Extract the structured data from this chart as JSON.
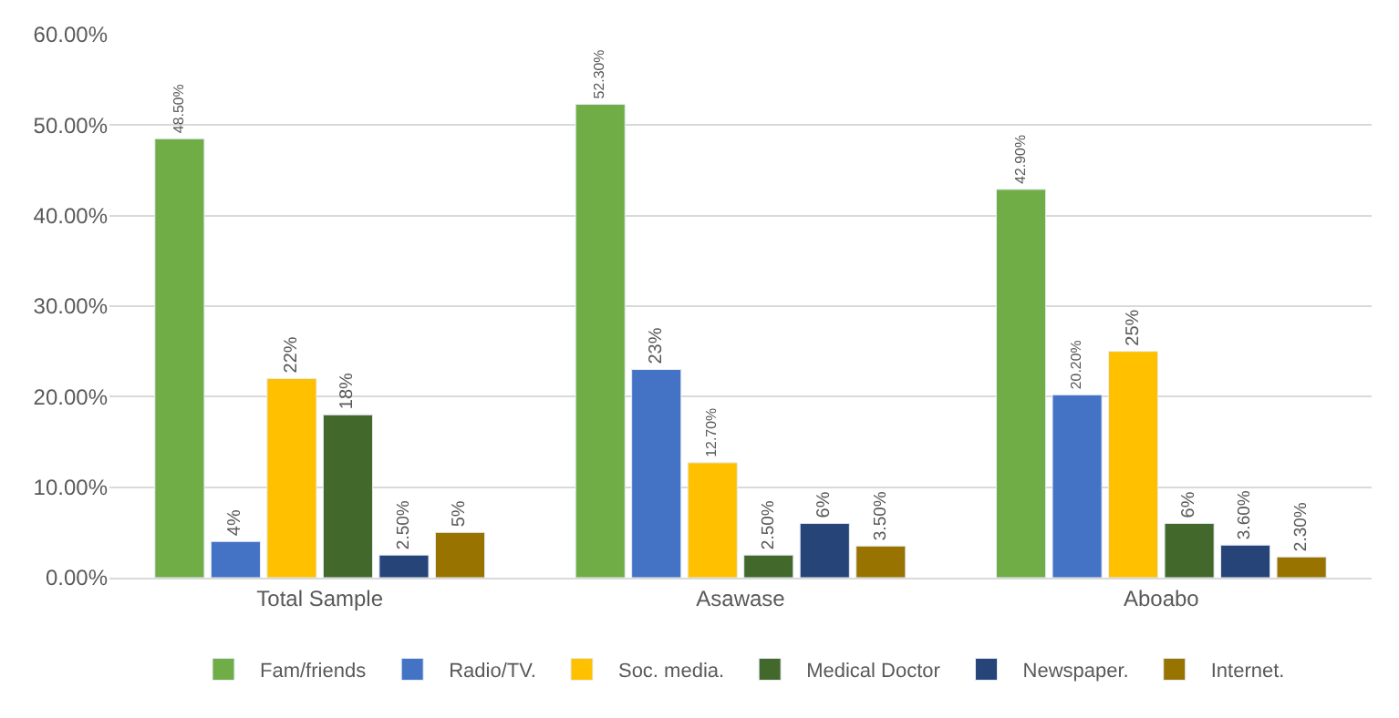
{
  "chart_data": {
    "type": "bar",
    "categories": [
      "Total Sample",
      "Asawase",
      "Aboabo"
    ],
    "series": [
      {
        "name": "Fam/friends",
        "color": "#70ad47",
        "values": [
          48.5,
          52.3,
          42.9
        ],
        "value_labels": [
          "48.50%",
          "52.30%",
          "42.90%"
        ]
      },
      {
        "name": "Radio/TV.",
        "color": "#4472c4",
        "values": [
          4,
          23,
          20.2
        ],
        "value_labels": [
          "4%",
          "23%",
          "20.20%"
        ]
      },
      {
        "name": "Soc. media.",
        "color": "#ffc000",
        "values": [
          22,
          12.7,
          25
        ],
        "value_labels": [
          "22%",
          "12.70%",
          "25%"
        ]
      },
      {
        "name": "Medical Doctor",
        "color": "#43682b",
        "values": [
          18,
          2.5,
          6
        ],
        "value_labels": [
          "18%",
          "2.50%",
          "6%"
        ]
      },
      {
        "name": "Newspaper.",
        "color": "#264478",
        "values": [
          2.5,
          6,
          3.6
        ],
        "value_labels": [
          "2.50%",
          "6%",
          "3.60%"
        ]
      },
      {
        "name": "Internet.",
        "color": "#997300",
        "values": [
          5,
          3.5,
          2.3
        ],
        "value_labels": [
          "5%",
          "3.50%",
          "2.30%"
        ]
      }
    ],
    "ylim": [
      0,
      60
    ],
    "yticks": [
      {
        "value": 0,
        "label": "0.00%"
      },
      {
        "value": 10,
        "label": "10.00%"
      },
      {
        "value": 20,
        "label": "20.00%"
      },
      {
        "value": 30,
        "label": "30.00%"
      },
      {
        "value": 40,
        "label": "40.00%"
      },
      {
        "value": 50,
        "label": "50.00%"
      },
      {
        "value": 60,
        "label": "60.00%"
      }
    ],
    "grid": "y",
    "legend": "bottom"
  }
}
